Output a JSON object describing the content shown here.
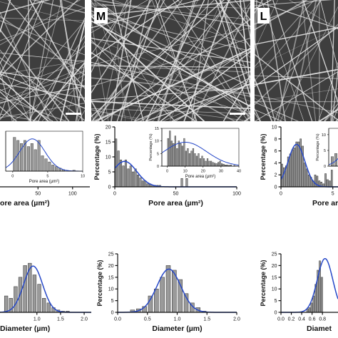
{
  "colors": {
    "bar_fill": "#9a9a9a",
    "bar_stroke": "#2a2a2a",
    "fit": "#2648c8",
    "sem_bg": "#3e3e3e",
    "sem_fiber": "#e6e6e6"
  },
  "panels": {
    "left": {
      "letter": ""
    },
    "mid": {
      "letter": "M"
    },
    "right": {
      "letter": "L"
    }
  },
  "chart_data": [
    {
      "id": "pore_left",
      "type": "bar",
      "xlabel": "ore area (µm²)",
      "ylabel": "",
      "xlim": [
        -5,
        125
      ],
      "ylim": [
        0,
        12
      ],
      "xticks": [
        50,
        100
      ],
      "yticks": [],
      "x": [],
      "values": [],
      "inset": {
        "type": "bar",
        "xlabel": "Pore area (µm²)",
        "ylabel": "",
        "xlim": [
          -1,
          10
        ],
        "ylim": [
          0,
          13
        ],
        "xticks": [
          0,
          5,
          10
        ],
        "yticks": [],
        "x": [
          0.25,
          0.75,
          1.25,
          1.75,
          2.25,
          2.75,
          3.25,
          3.75,
          4.25,
          4.75,
          5.25,
          5.75,
          6.25,
          6.75,
          7.25,
          7.75,
          8.25,
          8.75,
          9.25,
          9.75
        ],
        "values": [
          11,
          10,
          9,
          10,
          8,
          9,
          7,
          10,
          5,
          4,
          3,
          2,
          1.5,
          1,
          0.5,
          0,
          0,
          0.3,
          0,
          0
        ],
        "fit": {
          "mean": 2.8,
          "sd": 1.8,
          "peak": 10.5
        }
      }
    },
    {
      "id": "pore_mid",
      "type": "bar",
      "xlabel": "Pore area (µm²)",
      "ylabel": "Percentage (%)",
      "xlim": [
        0,
        100
      ],
      "ylim": [
        0,
        20
      ],
      "xticks": [
        0,
        50,
        100
      ],
      "yticks": [
        0,
        5,
        10,
        15,
        20
      ],
      "x": [
        1,
        3,
        5,
        7,
        9,
        11,
        13,
        15,
        17,
        19,
        21,
        23,
        25,
        27,
        29,
        31,
        33,
        35,
        37,
        39,
        41,
        43,
        45,
        47,
        49,
        51,
        53,
        55,
        57,
        59
      ],
      "values": [
        16,
        12,
        9,
        7,
        9,
        6,
        7,
        5,
        6,
        4,
        3,
        2,
        2,
        1,
        1,
        0.5,
        0.5,
        0.5,
        0.5,
        0,
        0,
        0,
        0,
        0,
        0,
        0,
        0,
        2.8,
        0,
        2.8
      ],
      "fit": {
        "mean": 8,
        "sd": 10,
        "peak": 8.5
      },
      "inset": {
        "type": "bar",
        "xlabel": "Pore area (µm²)",
        "ylabel": "Percentage (%)",
        "xlim": [
          -3,
          40
        ],
        "ylim": [
          0,
          15
        ],
        "xticks": [
          0,
          10,
          20,
          30,
          40
        ],
        "yticks": [
          0,
          5,
          10,
          15
        ],
        "x": [
          0.5,
          1.5,
          2.5,
          3.5,
          4.5,
          5.5,
          6.5,
          7.5,
          8.5,
          9.5,
          10.5,
          11.5,
          12.5,
          13.5,
          14.5,
          15.5,
          16.5,
          17.5,
          18.5,
          19.5,
          20.5,
          21.5,
          22.5,
          23.5,
          24.5,
          25.5,
          26.5,
          27.5,
          28.5,
          29.5,
          30.5,
          31.5,
          32.5,
          33.5,
          34.5,
          35.5,
          36.5,
          37.5,
          38.5,
          39.5
        ],
        "values": [
          11,
          14,
          10,
          9,
          12,
          7,
          10,
          9,
          8,
          11,
          6,
          7,
          5,
          6,
          7,
          5,
          4,
          5,
          3,
          4,
          3,
          2,
          3,
          2,
          2,
          1.5,
          1.2,
          1,
          1.5,
          2,
          1,
          0.8,
          0.5,
          0.5,
          0.3,
          0.5,
          0,
          0.3,
          0,
          0
        ],
        "fit": {
          "mean": 10,
          "sd": 12,
          "peak": 9.5
        }
      }
    },
    {
      "id": "pore_right",
      "type": "bar",
      "xlabel": "Pore area",
      "ylabel": "Percentage (%)",
      "xlim": [
        0,
        5.5
      ],
      "ylim": [
        0,
        10
      ],
      "xticks": [
        0,
        5
      ],
      "yticks": [
        0,
        2,
        4,
        6,
        8,
        10
      ],
      "x": [
        0.1,
        0.3,
        0.5,
        0.7,
        0.9,
        1.1,
        1.3,
        1.5,
        1.7,
        1.9,
        2.1,
        2.3,
        2.5,
        2.7,
        2.9,
        3.1,
        3.3,
        3.5,
        3.7,
        3.9,
        4.1,
        4.3,
        4.5,
        4.7,
        4.9
      ],
      "values": [
        3.8,
        3.2,
        3.5,
        5,
        5.5,
        6.2,
        6.5,
        7.5,
        7.5,
        8,
        6.8,
        4,
        3,
        2,
        1.6,
        1,
        2,
        1.8,
        1,
        0.8,
        0.5,
        2.2,
        1.2,
        1,
        2.8
      ],
      "fit": {
        "mean": 1.5,
        "sd": 0.8,
        "peak": 7.1
      },
      "inset": {
        "type": "bar",
        "xlabel": "",
        "ylabel": "Percentage (%)",
        "xlim": [
          0,
          4
        ],
        "ylim": [
          0,
          12
        ],
        "xticks": [],
        "yticks": [
          0,
          5,
          10
        ],
        "x": [
          0.5,
          1.0,
          1.5,
          2.0,
          2.5,
          3.0
        ],
        "values": [
          3,
          4,
          5,
          6,
          6,
          7
        ],
        "fit": {
          "mean": 3.5,
          "sd": 1.5,
          "peak": 7
        }
      }
    },
    {
      "id": "diam_left",
      "type": "bar",
      "xlabel": "Diameter (µm)",
      "ylabel": "",
      "xlim": [
        0.22,
        2.15
      ],
      "ylim": [
        0,
        25
      ],
      "xticks": [
        1.0,
        1.5,
        2.0
      ],
      "yticks": [],
      "x": [
        0.35,
        0.45,
        0.55,
        0.65,
        0.75,
        0.85,
        0.95,
        1.05,
        1.15,
        1.25,
        1.35,
        1.45,
        1.55,
        1.65
      ],
      "values": [
        7,
        6,
        11,
        15,
        20,
        21,
        16,
        12,
        6,
        4,
        2,
        1,
        0.5,
        0.5
      ],
      "fit": {
        "mean": 0.92,
        "sd": 0.2,
        "peak": 19.8
      }
    },
    {
      "id": "diam_mid",
      "type": "bar",
      "xlabel": "Diameter (µm)",
      "ylabel": "Percentage (%)",
      "xlim": [
        0.0,
        2.0
      ],
      "ylim": [
        0,
        25
      ],
      "xticks": [
        0.0,
        0.5,
        1.0,
        1.5,
        2.0
      ],
      "yticks": [
        0,
        5,
        10,
        15,
        20,
        25
      ],
      "x": [
        0.25,
        0.35,
        0.45,
        0.55,
        0.65,
        0.75,
        0.85,
        0.95,
        1.05,
        1.15,
        1.25,
        1.35,
        1.45
      ],
      "values": [
        1,
        1.5,
        2.5,
        7,
        10,
        15,
        20,
        18,
        14,
        8,
        4,
        2,
        0.5
      ],
      "fit": {
        "mean": 0.86,
        "sd": 0.2,
        "peak": 18.5
      }
    },
    {
      "id": "diam_right",
      "type": "bar",
      "xlabel": "Diamet",
      "ylabel": "Percentage (%)",
      "xlim": [
        0.0,
        1.1
      ],
      "ylim": [
        0,
        25
      ],
      "xticks": [
        0.0,
        0.2,
        0.4,
        0.6,
        0.8
      ],
      "yticks": [
        0,
        5,
        10,
        15,
        20,
        25
      ],
      "x": [
        0.51,
        0.55,
        0.59,
        0.63,
        0.67,
        0.71,
        0.75,
        0.79
      ],
      "values": [
        1.5,
        2,
        4,
        7,
        12,
        18,
        22,
        15
      ],
      "fit": {
        "mean": 0.85,
        "sd": 0.15,
        "peak": 23
      }
    }
  ]
}
